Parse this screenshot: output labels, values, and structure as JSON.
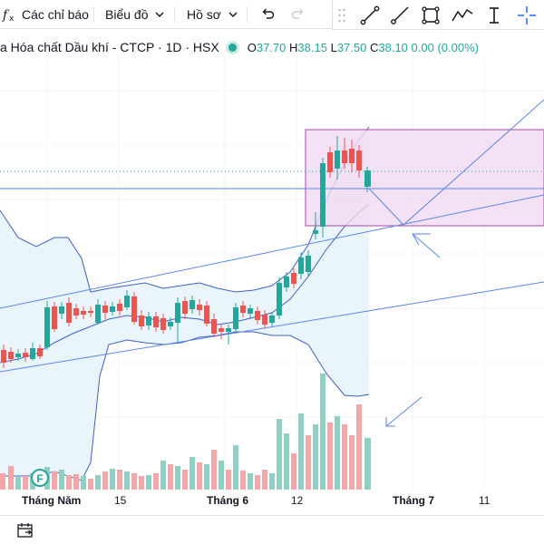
{
  "toolbar": {
    "indicators_label": "Các chỉ báo",
    "chart_type_label": "Biểu đồ",
    "profile_label": "Hồ sơ"
  },
  "legend": {
    "symbol_title": "a Hóa chất Dầu khí - CTCP · 1D · HSX",
    "open_key": "O",
    "open_value": "37.70",
    "high_key": "H",
    "high_value": "38.15",
    "low_key": "L",
    "low_value": "37.50",
    "close_key": "C",
    "close_value": "38.10",
    "change": "0.00 (0.00%)",
    "status_color": "#26a69a"
  },
  "xaxis": {
    "labels": [
      "Tháng Năm",
      "15",
      "Tháng 6",
      "12",
      "Tháng 7",
      "11"
    ]
  },
  "colors": {
    "up": "#26a69a",
    "down": "#ef5350",
    "up_volume": "#8fcfc4",
    "down_volume": "#f4a6a6",
    "trendline": "#5b86e5",
    "bollinger": "#3f5fc0",
    "box_fill": "#f3d9f3",
    "box_border": "#a64aa6"
  },
  "icons": {
    "indicators": "fx-icon",
    "chevron": "chevron-down-icon",
    "undo": "undo-icon",
    "redo": "redo-icon",
    "drag": "drag-handle-icon",
    "trend_line": "trend-line-icon",
    "ray": "ray-icon",
    "rectangle": "rectangle-icon",
    "path": "path-icon",
    "text_cursor": "text-cursor-icon",
    "crosshair": "crosshair-icon",
    "calendar": "calendar-icon",
    "earnings_marker": "earnings-marker-icon"
  },
  "earnings_marker_label": "F"
}
